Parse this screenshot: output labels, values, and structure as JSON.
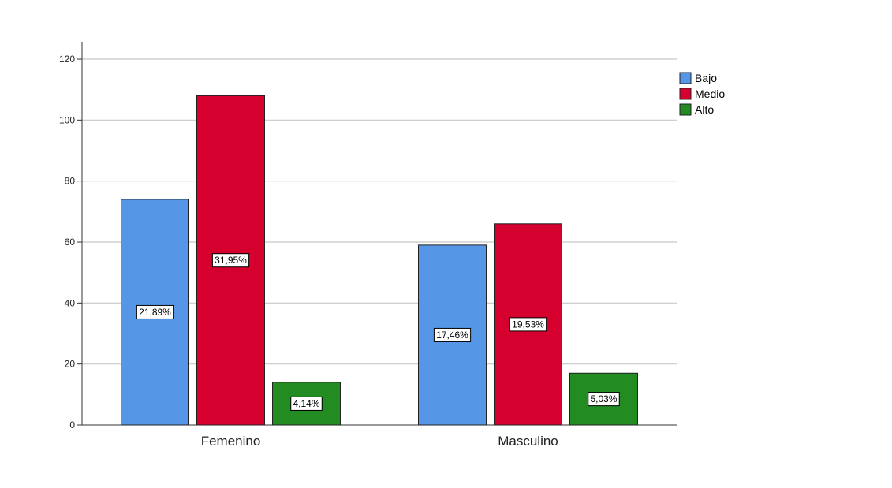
{
  "chart_data": {
    "type": "bar",
    "title": "",
    "xlabel": "",
    "ylabel": "",
    "categories": [
      "Femenino",
      "Masculino"
    ],
    "series": [
      {
        "name": "Bajo",
        "color": "#5596e6",
        "values": [
          74,
          59
        ],
        "labels": [
          "21,89%",
          "17,46%"
        ]
      },
      {
        "name": "Medio",
        "color": "#d6002f",
        "values": [
          108,
          66
        ],
        "labels": [
          "31,95%",
          "19,53%"
        ]
      },
      {
        "name": "Alto",
        "color": "#228b22",
        "values": [
          14,
          17
        ],
        "labels": [
          "4,14%",
          "5,03%"
        ]
      }
    ],
    "ylim": [
      0,
      120
    ],
    "yticks": [
      "0",
      "20",
      "40",
      "60",
      "80",
      "100",
      "120"
    ],
    "grid": true,
    "legend": "top-right"
  }
}
